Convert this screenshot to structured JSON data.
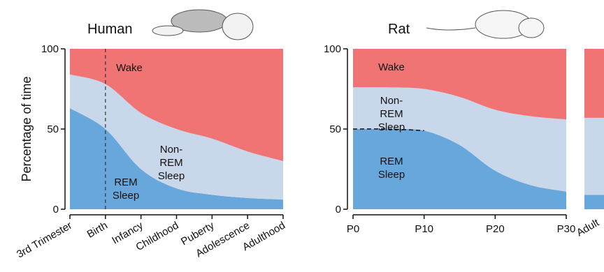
{
  "chart_data": [
    {
      "type": "area",
      "title": "Human",
      "ylabel": "Percentage of time",
      "categories": [
        "3rd Trimester",
        "Birth",
        "Infancy",
        "Childhood",
        "Puberty",
        "Adolescence",
        "Adulthood"
      ],
      "series": [
        {
          "name": "REM Sleep",
          "color": "#68a7dc",
          "values": [
            63,
            50,
            25,
            13,
            9,
            7,
            6
          ]
        },
        {
          "name": "Non-REM Sleep",
          "color": "#c9d7ea",
          "values": [
            21,
            28,
            35,
            37,
            35,
            29,
            24
          ]
        },
        {
          "name": "Wake",
          "color": "#f07474",
          "values": [
            16,
            22,
            40,
            50,
            56,
            64,
            70
          ]
        }
      ],
      "ylim": [
        0,
        100
      ],
      "yticks": [
        0,
        50,
        100
      ],
      "stacked": true
    },
    {
      "type": "area",
      "title": "Rat",
      "x": [
        0,
        5,
        10,
        15,
        20,
        25,
        30
      ],
      "series": [
        {
          "name": "REM Sleep",
          "color": "#68a7dc",
          "values": [
            50,
            50,
            49,
            40,
            24,
            15,
            11
          ]
        },
        {
          "name": "Non-REM Sleep",
          "color": "#c9d7ea",
          "values": [
            26,
            26,
            26,
            30,
            38,
            43,
            45
          ]
        },
        {
          "name": "Wake",
          "color": "#f07474",
          "values": [
            24,
            24,
            25,
            30,
            38,
            42,
            44
          ]
        }
      ],
      "xlim": [
        0,
        30
      ],
      "xticks": [
        {
          "value": 0,
          "label": "P0"
        },
        {
          "value": 10,
          "label": "P10"
        },
        {
          "value": 20,
          "label": "P20"
        },
        {
          "value": 30,
          "label": "P30"
        }
      ],
      "ylim": [
        0,
        100
      ],
      "yticks": [
        0,
        50,
        100
      ],
      "stacked": true
    },
    {
      "type": "bar",
      "categories": [
        "Adult"
      ],
      "series": [
        {
          "color": "#68a7dc",
          "values": [
            9
          ]
        },
        {
          "color": "#c9d7ea",
          "values": [
            48
          ]
        },
        {
          "color": "#f07474",
          "values": [
            43
          ]
        }
      ],
      "ylim": [
        0,
        100
      ],
      "stacked": true
    }
  ]
}
